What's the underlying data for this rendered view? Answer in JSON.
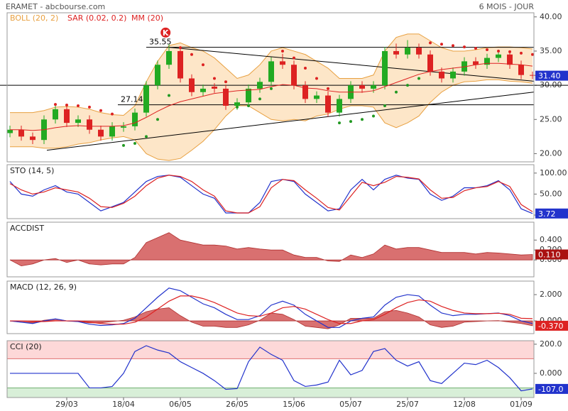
{
  "header": {
    "title": "ERAMET - abcbourse.com",
    "period": "6 MOIS - JOUR"
  },
  "xticks": [
    {
      "value": 5,
      "label": "29/03"
    },
    {
      "value": 10,
      "label": "18/04"
    },
    {
      "value": 15,
      "label": "06/05"
    },
    {
      "value": 20,
      "label": "26/05"
    },
    {
      "value": 25,
      "label": "15/06"
    },
    {
      "value": 30,
      "label": "05/07"
    },
    {
      "value": 35,
      "label": "25/07"
    },
    {
      "value": 40,
      "label": "12/08"
    },
    {
      "value": 45,
      "label": "01/09"
    }
  ],
  "chart_data": [
    {
      "type": "candlestick",
      "ylim": [
        18.8,
        40.6
      ],
      "yticks": [
        {
          "value": 40,
          "label": "40.00"
        },
        {
          "value": 35,
          "label": "35.00"
        },
        {
          "value": 30,
          "label": "30.00"
        },
        {
          "value": 25,
          "label": "25.00"
        },
        {
          "value": 20,
          "label": "20.00"
        }
      ],
      "up_color": "#22aa22",
      "down_color": "#dd2222",
      "ohlc": [
        [
          23,
          24.1,
          22.4,
          23.5
        ],
        [
          23.5,
          24.1,
          21.9,
          22.5
        ],
        [
          22.5,
          23.1,
          21.4,
          22
        ],
        [
          22,
          25.6,
          21.4,
          25
        ],
        [
          25,
          27.1,
          24.4,
          26.5
        ],
        [
          26.5,
          27.1,
          23.9,
          24.5
        ],
        [
          24.5,
          25.6,
          23.9,
          25
        ],
        [
          25,
          25.6,
          22.9,
          23.5
        ],
        [
          23.5,
          24.1,
          21.9,
          22.5
        ],
        [
          22.5,
          24.6,
          21.9,
          24
        ],
        [
          23.8,
          24.6,
          23.2,
          24
        ],
        [
          24,
          26.6,
          23.4,
          26
        ],
        [
          26,
          30.6,
          25.4,
          30
        ],
        [
          30,
          33.6,
          29.4,
          33
        ],
        [
          33,
          36,
          32.4,
          35
        ],
        [
          35,
          35.6,
          30.4,
          31
        ],
        [
          31,
          31.6,
          28.4,
          29
        ],
        [
          29,
          30.1,
          28.4,
          29.5
        ],
        [
          29.8,
          30.3,
          28.9,
          29.5
        ],
        [
          29.5,
          30.1,
          26.4,
          27
        ],
        [
          27,
          28.1,
          26.4,
          27.5
        ],
        [
          27.5,
          30.1,
          26.9,
          29.5
        ],
        [
          29.5,
          31.1,
          28.9,
          30.5
        ],
        [
          30.5,
          34.1,
          29.9,
          33.5
        ],
        [
          33.5,
          34.6,
          32.4,
          33
        ],
        [
          33,
          33.6,
          29.4,
          30
        ],
        [
          30,
          30.6,
          27.4,
          28
        ],
        [
          28,
          29.1,
          27.4,
          28.5
        ],
        [
          28.5,
          29.1,
          25.4,
          26
        ],
        [
          26,
          28.6,
          25.4,
          28
        ],
        [
          28,
          30.6,
          27.4,
          30
        ],
        [
          30,
          30.6,
          28.9,
          29.5
        ],
        [
          29.5,
          30.6,
          28.9,
          30
        ],
        [
          30,
          35.6,
          29.4,
          35
        ],
        [
          35,
          36.1,
          33.9,
          34.5
        ],
        [
          34.5,
          36.6,
          33.9,
          35.5
        ],
        [
          35.5,
          36.1,
          33.9,
          34.5
        ],
        [
          34.5,
          35.1,
          31.4,
          32
        ],
        [
          32,
          32.6,
          30.4,
          31
        ],
        [
          31,
          32.6,
          30.4,
          32
        ],
        [
          32,
          34.1,
          31.4,
          33.5
        ],
        [
          33.5,
          34.1,
          32.4,
          33
        ],
        [
          33,
          34.6,
          32.4,
          34
        ],
        [
          34,
          35.1,
          33.4,
          34.5
        ],
        [
          34.5,
          35.1,
          32.4,
          33
        ],
        [
          33,
          33.6,
          30.9,
          31.5
        ],
        [
          31.5,
          32,
          30.9,
          31.4
        ]
      ],
      "bollinger": {
        "name": "BOLL (20, 2)",
        "color": "#e8a040",
        "fill": "#fde6c8",
        "upper": [
          26,
          26,
          26,
          26.3,
          26.8,
          26.9,
          26.8,
          26.5,
          26,
          25.7,
          25.6,
          27,
          30.5,
          33.5,
          35.8,
          36.2,
          35.5,
          35,
          34,
          32.5,
          31,
          31.5,
          33,
          35,
          35.5,
          35,
          34.5,
          33.5,
          32.5,
          31,
          31,
          31,
          31.5,
          35,
          37,
          37.5,
          37.5,
          36.5,
          35.5,
          35,
          35,
          35.2,
          35.5,
          35.6,
          35.6,
          35.5,
          35.3
        ],
        "lower": [
          21,
          21,
          21,
          20.8,
          20.8,
          21,
          21.4,
          21.6,
          22,
          22.3,
          22.5,
          22,
          20,
          19.2,
          19,
          19.3,
          20.5,
          21.8,
          23.5,
          25.5,
          27,
          27,
          26,
          25,
          24.8,
          25,
          24.8,
          25.5,
          25.8,
          26.5,
          27,
          27,
          26.8,
          24.5,
          23.8,
          24.5,
          25.5,
          27.5,
          29,
          30,
          30.5,
          30.6,
          30.8,
          30.8,
          30.6,
          30.5,
          30.3
        ]
      },
      "sar": {
        "name": "SAR (0.02, 0.2)",
        "color_above": "#dd2222",
        "color_below": "#229922",
        "values": [
          null,
          null,
          null,
          null,
          27.2,
          27.1,
          27,
          26.8,
          26.3,
          25.8,
          21.2,
          21.5,
          22.5,
          25,
          28.5,
          35.5,
          34.5,
          33,
          31,
          30.5,
          26.8,
          27,
          28,
          29.5,
          35,
          34,
          32.5,
          31,
          29.5,
          24.5,
          24.7,
          25,
          25.5,
          27,
          29,
          30,
          31,
          36.2,
          36,
          35.8,
          35.6,
          35.4,
          35.2,
          35,
          34.9,
          34.7,
          34.5
        ]
      },
      "mm": {
        "name": "MM (20)",
        "color": "#dd2222",
        "values": [
          23.5,
          23.5,
          23.4,
          23.5,
          23.8,
          24,
          24.1,
          24,
          24,
          24,
          24.1,
          24.5,
          25.3,
          26.2,
          27,
          27.6,
          28,
          28.4,
          28.8,
          29,
          29.2,
          29.3,
          29.4,
          29.8,
          30.1,
          30,
          29.6,
          29.5,
          29.2,
          29,
          29,
          29,
          29.2,
          29.8,
          30.4,
          31,
          31.6,
          32,
          32.3,
          32.5,
          32.7,
          33,
          33.2,
          33.2,
          33.1,
          33,
          32.8
        ]
      },
      "levels": [
        {
          "value": 35.55,
          "label": "35.55",
          "from": 12
        },
        {
          "value": 27.14,
          "label": "27.14",
          "from": 9.5
        }
      ],
      "reference_line": 30,
      "trend_lines": [
        {
          "from": [
            3.25,
            20.5
          ],
          "to": [
            46.1,
            29
          ]
        },
        {
          "from": [
            14,
            35.55
          ],
          "to": [
            46.1,
            30.6
          ]
        }
      ],
      "event": {
        "label": "K",
        "index": 13.7,
        "price": 37.7
      },
      "last_label": {
        "text": "31.40",
        "color": "#2233cc"
      }
    },
    {
      "type": "line",
      "title": "STO (14, 5)",
      "ylim": [
        -8.5,
        120
      ],
      "yticks": [
        {
          "value": 100,
          "label": "100.00"
        },
        {
          "value": 50,
          "label": "50.00"
        },
        {
          "value": 0,
          "label": "0.00"
        }
      ],
      "series": [
        {
          "color": "#2233cc",
          "values": [
            80,
            50,
            45,
            60,
            70,
            55,
            50,
            30,
            10,
            20,
            30,
            55,
            80,
            92,
            95,
            90,
            70,
            50,
            40,
            5,
            5,
            5,
            30,
            80,
            85,
            80,
            50,
            30,
            10,
            15,
            60,
            85,
            60,
            85,
            95,
            88,
            85,
            50,
            35,
            45,
            65,
            65,
            70,
            82,
            60,
            15,
            3.72
          ]
        },
        {
          "color": "#dd2222",
          "values": [
            75,
            60,
            50,
            55,
            65,
            60,
            55,
            40,
            20,
            18,
            28,
            45,
            70,
            88,
            95,
            92,
            80,
            60,
            45,
            10,
            5,
            5,
            20,
            65,
            85,
            82,
            60,
            40,
            18,
            12,
            45,
            78,
            70,
            78,
            92,
            90,
            86,
            60,
            40,
            42,
            58,
            65,
            68,
            80,
            68,
            25,
            8
          ]
        }
      ],
      "last_label": {
        "text": "3.72",
        "color": "#2233cc"
      }
    },
    {
      "type": "area",
      "title": "ACCDIST",
      "ylim": [
        -0.34,
        0.76
      ],
      "color": "#d97070",
      "stroke": "#b03030",
      "yticks": [
        {
          "value": 0.4,
          "label": "0.400"
        },
        {
          "value": 0.2,
          "label": "0.200"
        },
        {
          "value": 0,
          "label": "0.000"
        }
      ],
      "values": [
        0,
        -0.12,
        -0.08,
        0,
        0.03,
        -0.05,
        0,
        -0.08,
        -0.1,
        -0.08,
        -0.08,
        0.05,
        0.35,
        0.45,
        0.55,
        0.4,
        0.35,
        0.3,
        0.3,
        0.28,
        0.22,
        0.25,
        0.22,
        0.2,
        0.2,
        0.1,
        0.05,
        0.05,
        -0.02,
        -0.03,
        0.1,
        0.05,
        0.12,
        0.3,
        0.22,
        0.25,
        0.25,
        0.2,
        0.15,
        0.15,
        0.15,
        0.12,
        0.15,
        0.14,
        0.12,
        0.1,
        0.11
      ],
      "last_label": {
        "text": "0.110",
        "color": "#aa1111"
      }
    },
    {
      "type": "line",
      "title": "MACD (12, 26, 9)",
      "ylim": [
        -0.97,
        3.03
      ],
      "yticks": [
        {
          "value": 2,
          "label": "2.000"
        },
        {
          "value": 0,
          "label": "0.000"
        }
      ],
      "histogram": {
        "color": "#d97070",
        "stroke": "#b03030",
        "values": [
          0,
          -0.1,
          -0.15,
          0.05,
          0.15,
          0,
          -0.05,
          -0.15,
          -0.15,
          -0.05,
          0.05,
          0.3,
          0.7,
          0.9,
          1,
          0.4,
          -0.1,
          -0.4,
          -0.4,
          -0.5,
          -0.5,
          -0.3,
          0.05,
          0.6,
          0.5,
          0.1,
          -0.4,
          -0.5,
          -0.6,
          -0.3,
          0.2,
          0.2,
          0.2,
          0.7,
          0.8,
          0.6,
          0.3,
          -0.3,
          -0.5,
          -0.4,
          -0.1,
          -0.05,
          0,
          0.02,
          -0.1,
          -0.2,
          -0.37
        ]
      },
      "series": [
        {
          "color": "#2233cc",
          "values": [
            0,
            -0.1,
            -0.2,
            0,
            0.15,
            0,
            -0.05,
            -0.25,
            -0.35,
            -0.3,
            -0.2,
            0.2,
            1,
            1.8,
            2.5,
            2.3,
            1.8,
            1.3,
            1,
            0.5,
            0.1,
            0.1,
            0.4,
            1.2,
            1.5,
            1.2,
            0.5,
            0,
            -0.5,
            -0.5,
            0,
            0.2,
            0.3,
            1.2,
            1.8,
            2,
            1.9,
            1.2,
            0.6,
            0.4,
            0.5,
            0.5,
            0.55,
            0.6,
            0.4,
            0,
            -0.2
          ]
        },
        {
          "color": "#dd2222",
          "values": [
            0,
            0,
            -0.05,
            -0.05,
            0,
            0,
            0,
            -0.1,
            -0.2,
            -0.25,
            -0.25,
            -0.1,
            0.3,
            0.9,
            1.5,
            1.9,
            1.9,
            1.7,
            1.4,
            1,
            0.6,
            0.4,
            0.35,
            0.6,
            1,
            1.1,
            0.9,
            0.5,
            0.1,
            -0.2,
            -0.2,
            0,
            0.1,
            0.5,
            1,
            1.4,
            1.6,
            1.5,
            1.1,
            0.8,
            0.6,
            0.55,
            0.55,
            0.58,
            0.5,
            0.2,
            0.17
          ]
        }
      ],
      "last_label": {
        "text": "-0.370",
        "color": "#dd2222"
      }
    },
    {
      "type": "line",
      "title": "CCI (20)",
      "ylim": [
        -166,
        224
      ],
      "yticks": [
        {
          "value": 200,
          "label": "200.0"
        },
        {
          "value": 0,
          "label": "0.000"
        }
      ],
      "bands": [
        {
          "above": 100,
          "color": "#fdd8d8",
          "stroke": "#e07070"
        },
        {
          "below": -100,
          "color": "#d8efd8",
          "stroke": "#70b070"
        }
      ],
      "series": [
        {
          "color": "#2233cc",
          "values": [
            0,
            0,
            0,
            0,
            0,
            0,
            0,
            -100,
            -100,
            -90,
            0,
            150,
            190,
            160,
            140,
            80,
            40,
            0,
            -50,
            -110,
            -105,
            80,
            180,
            130,
            90,
            -50,
            -90,
            -80,
            -60,
            90,
            -10,
            20,
            150,
            170,
            90,
            50,
            80,
            -50,
            -70,
            0,
            70,
            60,
            90,
            40,
            -30,
            -120,
            -107
          ]
        }
      ],
      "last_label": {
        "text": "-107.0",
        "color": "#2233cc"
      }
    }
  ]
}
